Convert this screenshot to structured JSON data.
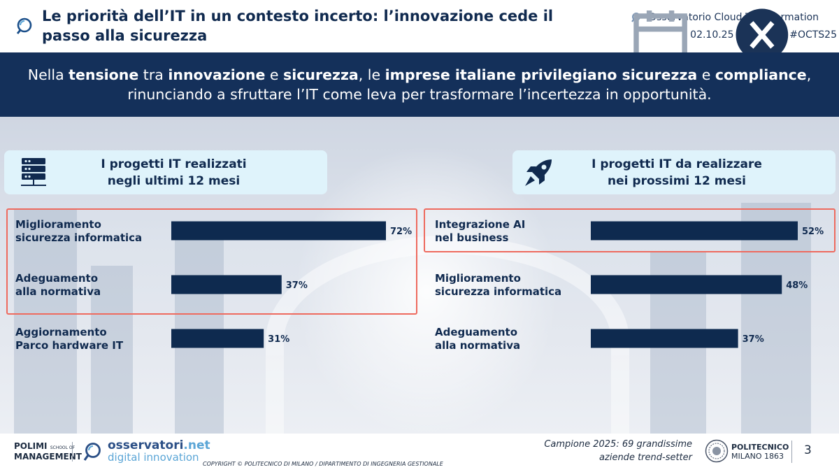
{
  "header": {
    "title": "Le priorità dell’IT in un contesto incerto: l’innovazione cede il passo alla sicurezza",
    "observatory": "Osservatorio Cloud Transformation",
    "date": "02.10.25",
    "hashtag": "#OCTS25"
  },
  "banner": {
    "p1": "Nella ",
    "b1": "tensione",
    "p2": " tra ",
    "b2": "innovazione",
    "p3": " e ",
    "b3": "sicurezza",
    "p4": ", le ",
    "b4": "imprese italiane privilegiano sicurezza",
    "p5": " e ",
    "b5": "compliance",
    "p6": ",",
    "line2": "rinunciando a sfruttare l’IT come leva per trasformare l’incertezza in opportunità."
  },
  "colors": {
    "bar": "#0e2a4f",
    "highlight": "#ee6a5e",
    "banner": "#14305a"
  },
  "chart_data": [
    {
      "type": "bar",
      "orientation": "horizontal",
      "title_line1": "I progetti IT realizzati",
      "title_line2": "negli ultimi 12 mesi",
      "icon": "server-icon",
      "categories": [
        [
          "Miglioramento",
          "sicurezza informatica"
        ],
        [
          "Adeguamento",
          "alla normativa"
        ],
        [
          "Aggiornamento",
          "Parco hardware IT"
        ]
      ],
      "values": [
        72,
        37,
        31
      ],
      "value_labels": [
        "72%",
        "37%",
        "31%"
      ],
      "unit": "%",
      "xlim": [
        0,
        72
      ],
      "highlighted": [
        0,
        1
      ]
    },
    {
      "type": "bar",
      "orientation": "horizontal",
      "title_line1": "I progetti IT da realizzare",
      "title_line2": "nei prossimi 12 mesi",
      "icon": "rocket-icon",
      "categories": [
        [
          "Integrazione AI",
          "nel business"
        ],
        [
          "Miglioramento",
          "sicurezza informatica"
        ],
        [
          "Adeguamento",
          "alla normativa"
        ]
      ],
      "values": [
        52,
        48,
        37
      ],
      "value_labels": [
        "52%",
        "48%",
        "37%"
      ],
      "unit": "%",
      "xlim": [
        0,
        52
      ],
      "highlighted": [
        0
      ]
    }
  ],
  "footer": {
    "polimi_line1": "POLIMI",
    "polimi_line2": "MANAGEMENT",
    "polimi_school_1": "SCHOOL OF",
    "osservatori": "osservatori",
    "osservatori_tld": ".net",
    "osservatori_sub": "digital innovation",
    "copyright": "COPYRIGHT © POLITECNICO DI MILANO / DIPARTIMENTO DI INGEGNERIA GESTIONALE",
    "sample_line1": "Campione 2025: 69 grandissime",
    "sample_line2": "aziende trend-setter",
    "politecnico": "POLITECNICO",
    "milano": "MILANO 1863",
    "page": "3"
  }
}
